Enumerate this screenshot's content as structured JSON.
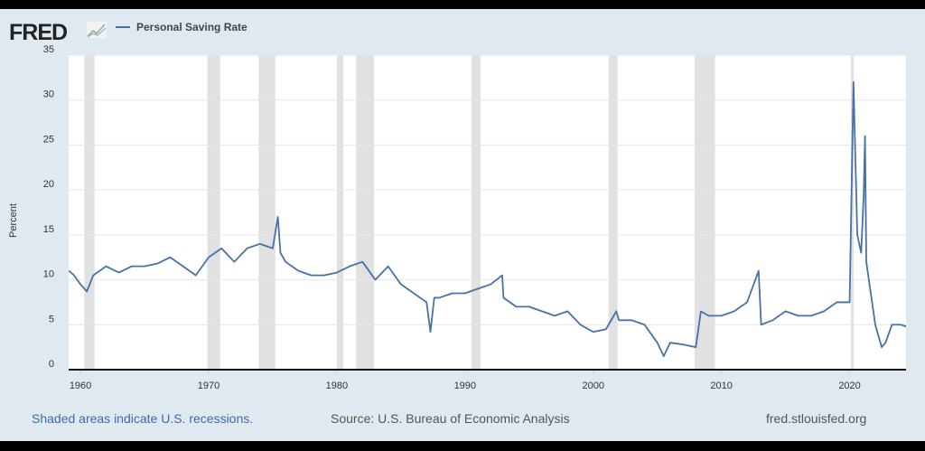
{
  "header": {
    "logo": "FRED",
    "legend": "Personal Saving Rate"
  },
  "footer": {
    "note": "Shaded areas indicate U.S. recessions.",
    "source": "Source: U.S. Bureau of Economic Analysis",
    "site": "fred.stlouisfed.org"
  },
  "colors": {
    "line": "#4572a7",
    "recession": "#e1e1e1",
    "background": "#e1e9f0"
  },
  "chart_data": {
    "type": "line",
    "title": "Personal Saving Rate",
    "xlabel": "",
    "ylabel": "Percent",
    "xlim": [
      1959.08,
      2024.4
    ],
    "ylim": [
      0,
      35
    ],
    "yticks": [
      0,
      5,
      10,
      15,
      20,
      25,
      30,
      35
    ],
    "xticks": [
      1960,
      1970,
      1980,
      1990,
      2000,
      2010,
      2020
    ],
    "recessions": [
      [
        1960.3,
        1961.1
      ],
      [
        1969.9,
        1970.9
      ],
      [
        1973.9,
        1975.2
      ],
      [
        1980.0,
        1980.5
      ],
      [
        1981.5,
        1982.9
      ],
      [
        1990.5,
        1991.2
      ],
      [
        2001.2,
        2001.9
      ],
      [
        2007.9,
        2009.5
      ],
      [
        2020.1,
        2020.3
      ]
    ],
    "series": [
      {
        "name": "Personal Saving Rate",
        "x": [
          1959.1,
          1959.5,
          1960,
          1960.5,
          1961,
          1962,
          1963,
          1964,
          1965,
          1966,
          1967,
          1968,
          1969,
          1970,
          1971,
          1972,
          1973,
          1974,
          1975,
          1975.4,
          1975.6,
          1976,
          1977,
          1978,
          1979,
          1980,
          1981,
          1982,
          1983,
          1984,
          1985,
          1986,
          1987,
          1987.3,
          1987.6,
          1988,
          1989,
          1990,
          1991,
          1992,
          1992.9,
          1993,
          1994,
          1995,
          1996,
          1997,
          1998,
          1999,
          2000,
          2001,
          2001.8,
          2002,
          2003,
          2004,
          2005,
          2005.5,
          2006,
          2007,
          2008,
          2008.4,
          2009,
          2010,
          2011,
          2012,
          2012.9,
          2013.1,
          2014,
          2015,
          2016,
          2017,
          2018,
          2019,
          2020,
          2020.3,
          2020.6,
          2020.9,
          2021.1,
          2021.2,
          2021.3,
          2021.6,
          2022,
          2022.5,
          2022.8,
          2023.3,
          2024,
          2024.4
        ],
        "values": [
          11,
          10.5,
          9.5,
          8.7,
          10.5,
          11.5,
          10.8,
          11.5,
          11.5,
          11.8,
          12.5,
          11.5,
          10.5,
          12.5,
          13.5,
          12,
          13.5,
          14,
          13.5,
          17,
          13,
          12,
          11,
          10.5,
          10.5,
          10.8,
          11.5,
          12,
          10,
          11.5,
          9.5,
          8.5,
          7.5,
          4.2,
          8,
          8,
          8.5,
          8.5,
          9,
          9.5,
          10.5,
          8,
          7,
          7,
          6.5,
          6,
          6.5,
          5,
          4.2,
          4.5,
          6.5,
          5.5,
          5.5,
          5,
          3,
          1.5,
          3,
          2.8,
          2.5,
          6.5,
          6,
          6,
          6.5,
          7.5,
          11,
          5,
          5.5,
          6.5,
          6,
          6,
          6.5,
          7.5,
          7.5,
          32,
          15,
          13,
          19.5,
          26,
          12,
          9,
          5,
          2.5,
          3,
          5,
          5,
          4.8
        ]
      }
    ]
  }
}
